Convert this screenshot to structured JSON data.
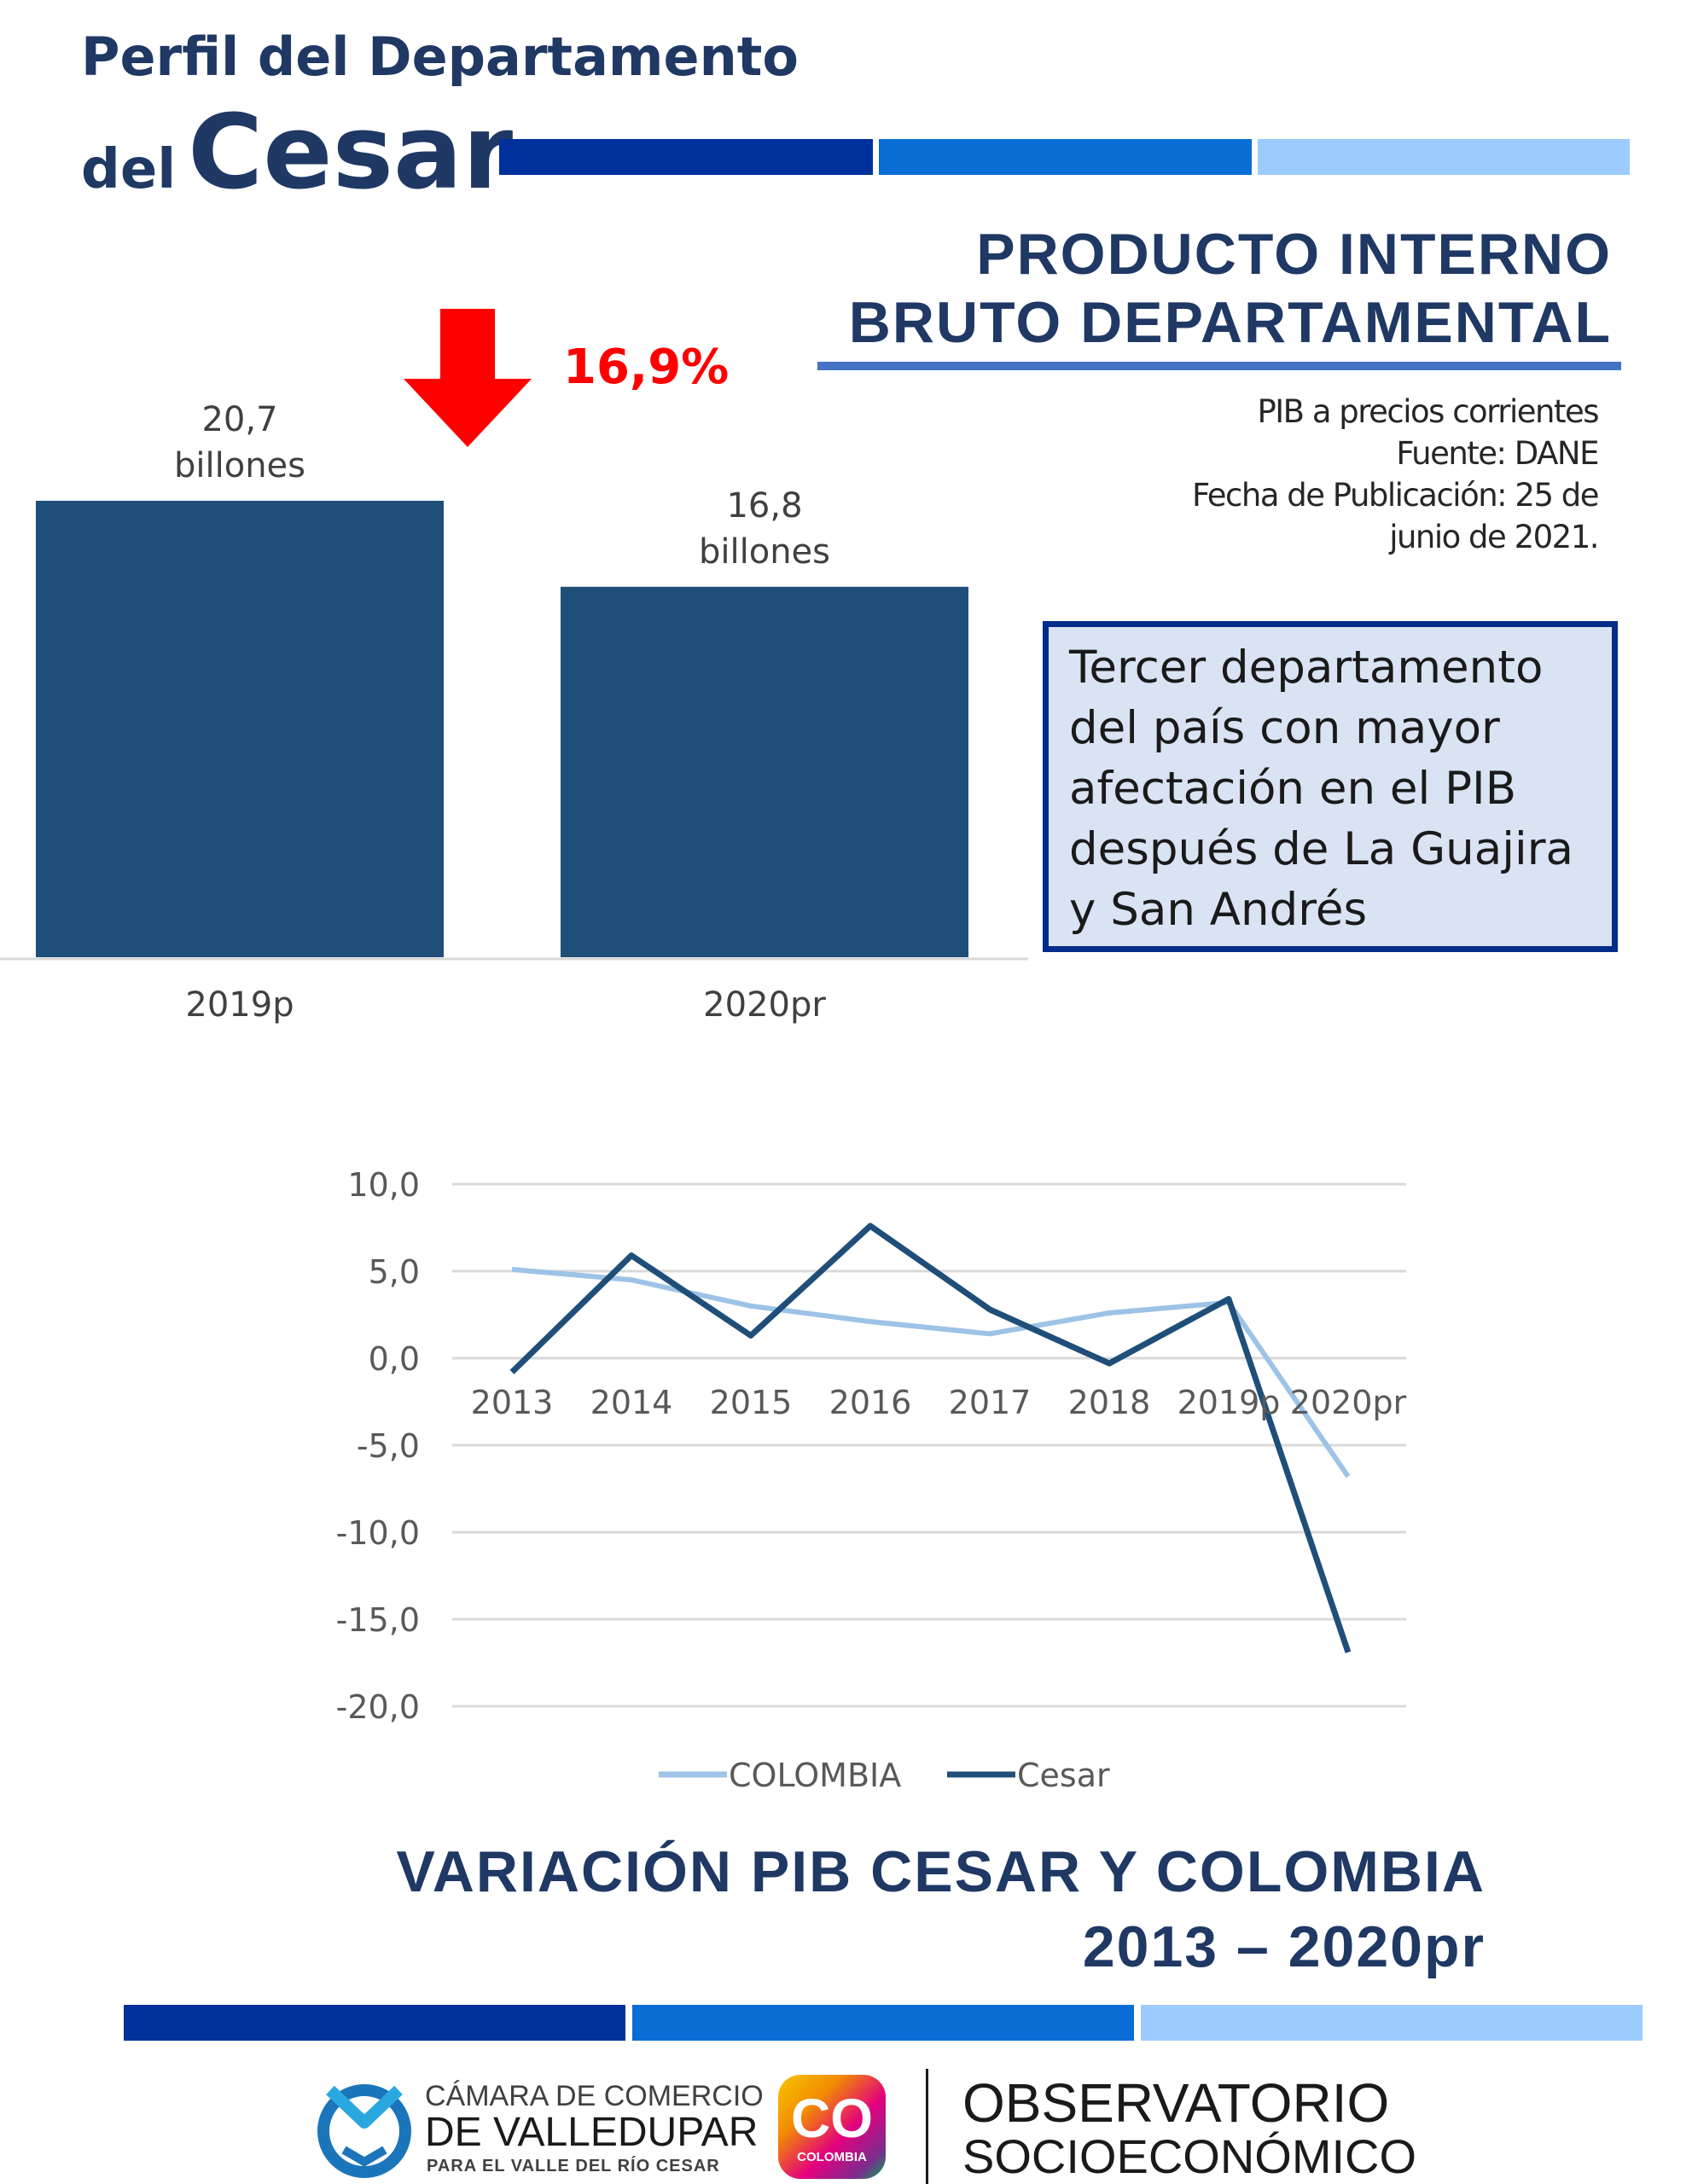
{
  "header": {
    "line1": "Perfil del Departamento",
    "line2_prefix": "del",
    "line2_main": "Cesar",
    "stripe_colors": [
      "#00309b",
      "#0a6dd6",
      "#9ccbff"
    ]
  },
  "section": {
    "title_line1": "PRODUCTO INTERNO",
    "title_line2": "BRUTO DEPARTAMENTAL"
  },
  "source": {
    "line1": "PIB a precios corrientes",
    "line2": "Fuente:  DANE",
    "line3": "Fecha de Publicación: 25 de",
    "line4": "junio de  2021."
  },
  "callout": {
    "text": "Tercer departamento del país con mayor afectación en el PIB después de La Guajira y San Andrés"
  },
  "decrease": {
    "label": "16,9%",
    "arrow_icon": "arrow-down-icon",
    "color": "#ff0000"
  },
  "chart_data": [
    {
      "type": "bar",
      "categories": [
        "2019p",
        "2020pr"
      ],
      "values": [
        20.7,
        16.8
      ],
      "value_labels": [
        [
          "20,7",
          "billones"
        ],
        [
          "16,8",
          "billones"
        ]
      ],
      "ylim": [
        0,
        20.7
      ],
      "bar_color": "#1f4e79",
      "grid": false,
      "legend": "none"
    },
    {
      "type": "line",
      "categories": [
        "2013",
        "2014",
        "2015",
        "2016",
        "2017",
        "2018",
        "2019p",
        "2020pr"
      ],
      "series": [
        {
          "name": "COLOMBIA",
          "values": [
            5.1,
            4.5,
            3.0,
            2.1,
            1.4,
            2.6,
            3.2,
            -6.8
          ],
          "color": "#9dc3e6"
        },
        {
          "name": "Cesar",
          "values": [
            -0.8,
            5.9,
            1.3,
            7.6,
            2.8,
            -0.3,
            3.4,
            -16.9
          ],
          "color": "#1f4e79"
        }
      ],
      "yticks": [
        "10,0",
        "5,0",
        "0,0",
        "-5,0",
        "-10,0",
        "-15,0",
        "-20,0"
      ],
      "ylim": [
        -20,
        10
      ],
      "grid": true,
      "legend": "bottom",
      "title_line1": "VARIACIÓN PIB CESAR Y COLOMBIA",
      "title_line2": "2013 – 2020pr"
    }
  ],
  "footer": {
    "camara_line1": "CÁMARA DE COMERCIO",
    "camara_line2": "DE VALLEDUPAR",
    "camara_line3": "PARA EL VALLE DEL RÍO CESAR",
    "co_logo_text": "CO",
    "co_logo_sub": "COLOMBIA",
    "obs_line1": "OBSERVATORIO",
    "obs_line2": "SOCIOECONÓMICO"
  }
}
